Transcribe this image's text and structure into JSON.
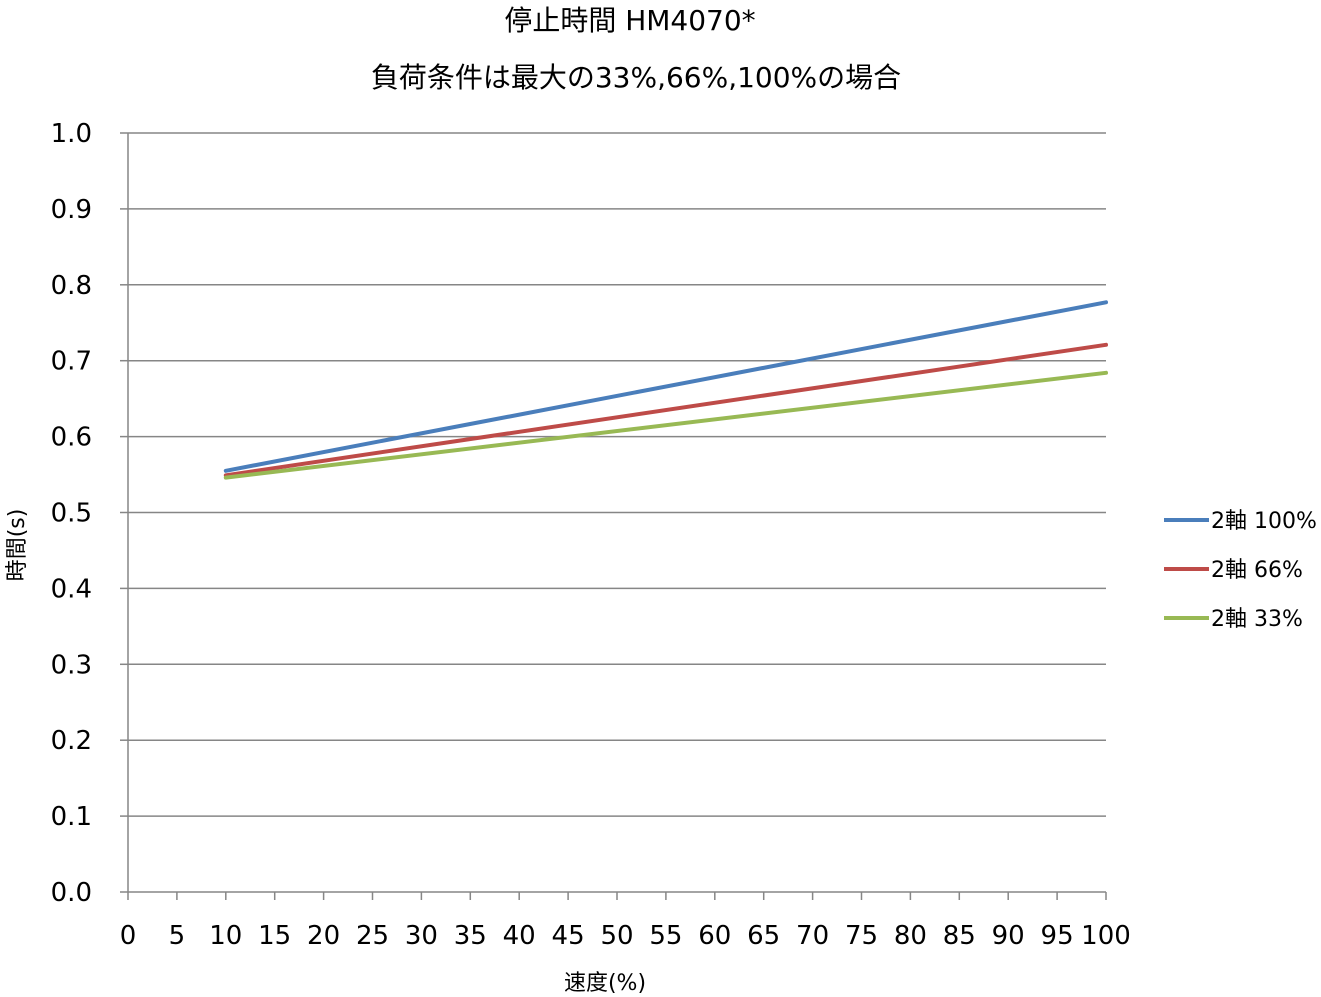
{
  "chart_data": {
    "type": "line",
    "title": "停止時間 HM4070*",
    "subtitle": "負荷条件は最大の33%,66%,100%の場合",
    "xlabel": "速度(%)",
    "ylabel": "時間(s)",
    "xlim": [
      0,
      100
    ],
    "ylim": [
      0.0,
      1.0
    ],
    "x_ticks": [
      "0",
      "5",
      "10",
      "15",
      "20",
      "25",
      "30",
      "35",
      "40",
      "45",
      "50",
      "55",
      "60",
      "65",
      "70",
      "75",
      "80",
      "85",
      "90",
      "95",
      "100"
    ],
    "y_ticks": [
      "0.0",
      "0.1",
      "0.2",
      "0.3",
      "0.4",
      "0.5",
      "0.6",
      "0.7",
      "0.8",
      "0.9",
      "1.0"
    ],
    "grid": "horizontal",
    "legend_position": "right",
    "series": [
      {
        "name": "2軸 100%",
        "color": "#4a7ebb",
        "x": [
          10,
          100
        ],
        "y": [
          0.555,
          0.777
        ]
      },
      {
        "name": "2軸 66%",
        "color": "#be4b48",
        "x": [
          10,
          100
        ],
        "y": [
          0.549,
          0.721
        ]
      },
      {
        "name": "2軸 33%",
        "color": "#98b954",
        "x": [
          10,
          100
        ],
        "y": [
          0.546,
          0.684
        ]
      }
    ]
  }
}
